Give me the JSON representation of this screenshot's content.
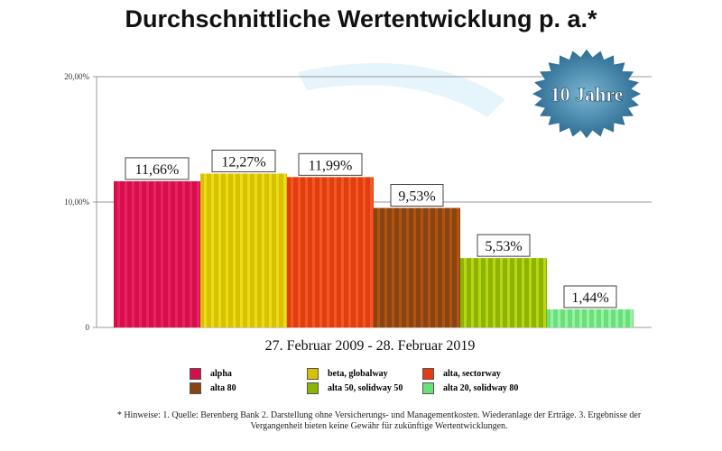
{
  "chart_data": {
    "type": "bar",
    "title": "Durchschnittliche Wertentwicklung p. a.*",
    "xlabel": "27. Februar 2009 - 28. Februar 2019",
    "ylabel": "",
    "ylim": [
      0,
      20
    ],
    "yticks": [
      "0",
      "10,00%",
      "20,00%"
    ],
    "ytick_values": [
      0,
      10,
      20
    ],
    "categories": [
      "alpha",
      "beta, globalway",
      "alta, sectorway",
      "alta 80",
      "alta 50, solidway 50",
      "alta 20, solidway 80"
    ],
    "values": [
      11.66,
      12.27,
      11.99,
      9.53,
      5.53,
      1.44
    ],
    "data_labels": [
      "11,66%",
      "12,27%",
      "11,99%",
      "9,53%",
      "5,53%",
      "1,44%"
    ],
    "colors": [
      "#d4104c",
      "#d8c200",
      "#e23c12",
      "#8a4412",
      "#8cb400",
      "#6ae07a"
    ],
    "stripe_colors": [
      "#ff3070",
      "#fff030",
      "#ff7030",
      "#d06010",
      "#e0f020",
      "#c0ffc8"
    ],
    "badge": "10 Jahre",
    "legend_position": "bottom"
  },
  "footnote": [
    "* Hinweise: 1. Quelle: Berenberg Bank  2. Darstellung ohne Versicherungs- und Managementkosten. Wiederanlage der Erträge.  3. Ergebnisse der",
    "Vergangenheit bieten keine Gewähr für zukünftige Wertentwicklungen."
  ]
}
